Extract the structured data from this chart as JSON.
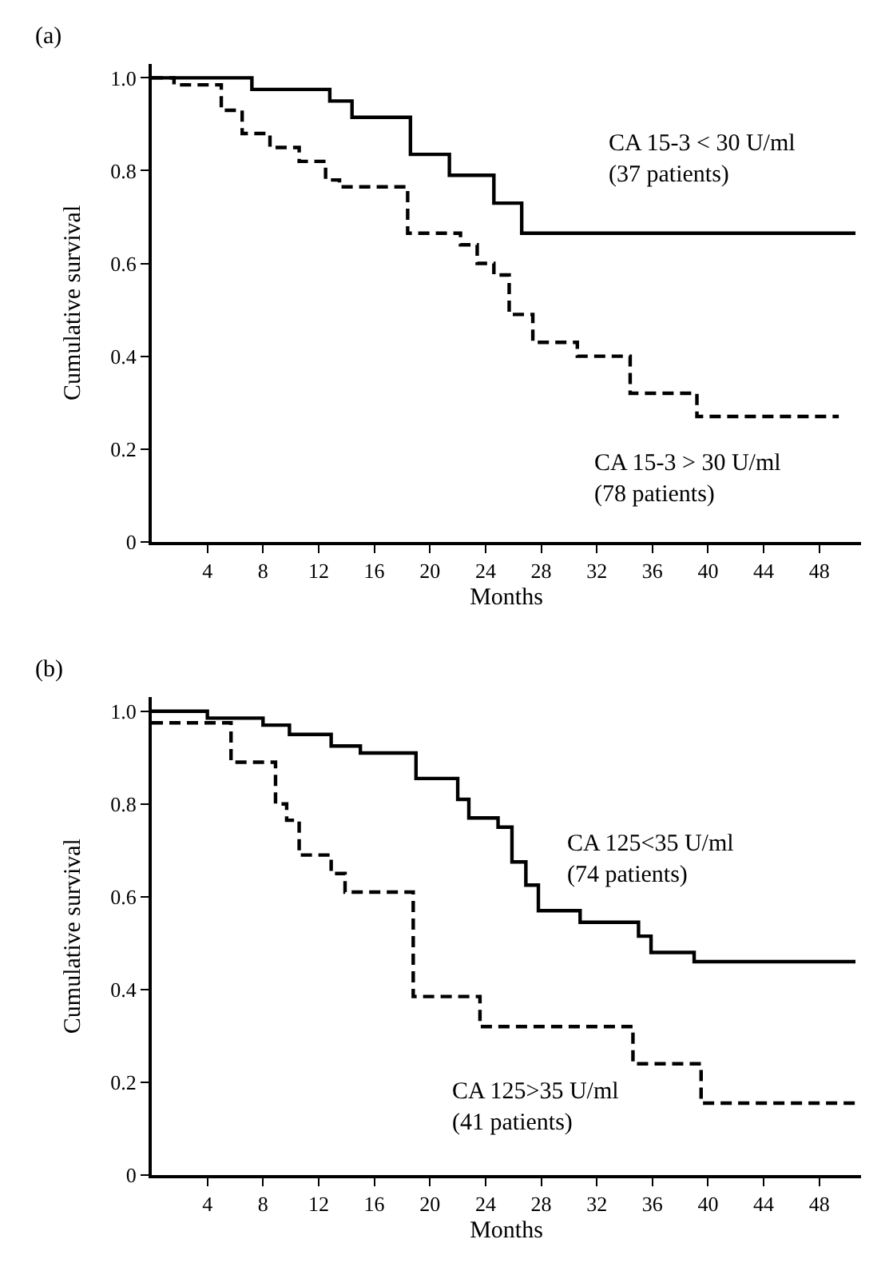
{
  "chart_data": [
    {
      "type": "step",
      "title": "(a)",
      "xlabel": "Months",
      "ylabel": "Cumulative survival",
      "xlim": [
        0,
        51
      ],
      "xticks": [
        4,
        8,
        12,
        16,
        20,
        24,
        28,
        32,
        36,
        40,
        44,
        48
      ],
      "ylim": [
        0,
        1.03
      ],
      "yticks": [
        0,
        0.2,
        0.4,
        0.6,
        0.8,
        {
          "value": 1.0,
          "label": "1.0"
        }
      ],
      "legend": false,
      "marker": "none",
      "series": [
        {
          "name": "CA 15-3 < 30 U/ml\n(37 patients)",
          "color": "#000000",
          "line_style": "solid",
          "x": [
            0,
            7.2,
            12.8,
            14.4,
            18.6,
            21.4,
            24.6,
            26.6,
            50.6
          ],
          "values": [
            1.0,
            0.975,
            0.95,
            0.915,
            0.835,
            0.79,
            0.73,
            0.665,
            0.665
          ]
        },
        {
          "name": "CA 15-3 > 30 U/ml\n(78 patients)",
          "color": "#000000",
          "line_style": "dashed",
          "x": [
            0,
            1.6,
            5,
            6.5,
            8.5,
            10.6,
            12.5,
            13.5,
            18.4,
            22.2,
            23.4,
            24.6,
            25.7,
            27.4,
            30.6,
            34.4,
            39.2,
            49.4
          ],
          "values": [
            1.0,
            0.985,
            0.93,
            0.88,
            0.85,
            0.82,
            0.78,
            0.765,
            0.665,
            0.64,
            0.6,
            0.575,
            0.49,
            0.43,
            0.4,
            0.32,
            0.27,
            0.27
          ]
        }
      ]
    },
    {
      "type": "step",
      "title": "(b)",
      "xlabel": "Months",
      "ylabel": "Cumulative survival",
      "xlim": [
        0,
        51
      ],
      "xticks": [
        4,
        8,
        12,
        16,
        20,
        24,
        28,
        32,
        36,
        40,
        44,
        48
      ],
      "ylim": [
        0,
        1.03
      ],
      "yticks": [
        0,
        0.2,
        0.4,
        0.6,
        0.8,
        {
          "value": 1.0,
          "label": "1.0"
        }
      ],
      "legend": false,
      "marker": "none",
      "series": [
        {
          "name": "CA 125<35 U/ml\n(74 patients)",
          "color": "#000000",
          "line_style": "solid",
          "x": [
            0,
            4,
            8,
            9.9,
            12.9,
            15,
            19,
            22,
            22.8,
            24.9,
            25.9,
            26.9,
            27.8,
            30.8,
            35,
            35.9,
            39,
            50.6
          ],
          "values": [
            1.0,
            0.985,
            0.97,
            0.95,
            0.925,
            0.91,
            0.855,
            0.81,
            0.77,
            0.75,
            0.675,
            0.625,
            0.57,
            0.545,
            0.515,
            0.48,
            0.46,
            0.46
          ]
        },
        {
          "name": "CA 125>35 U/ml\n(41 patients)",
          "color": "#000000",
          "line_style": "dashed",
          "x": [
            0,
            5.7,
            8.9,
            9.7,
            10.6,
            12.9,
            13.9,
            18.8,
            23.6,
            34.6,
            39.5,
            50.8
          ],
          "values": [
            0.975,
            0.89,
            0.8,
            0.765,
            0.69,
            0.65,
            0.61,
            0.385,
            0.32,
            0.24,
            0.155,
            0.155
          ]
        }
      ]
    }
  ]
}
